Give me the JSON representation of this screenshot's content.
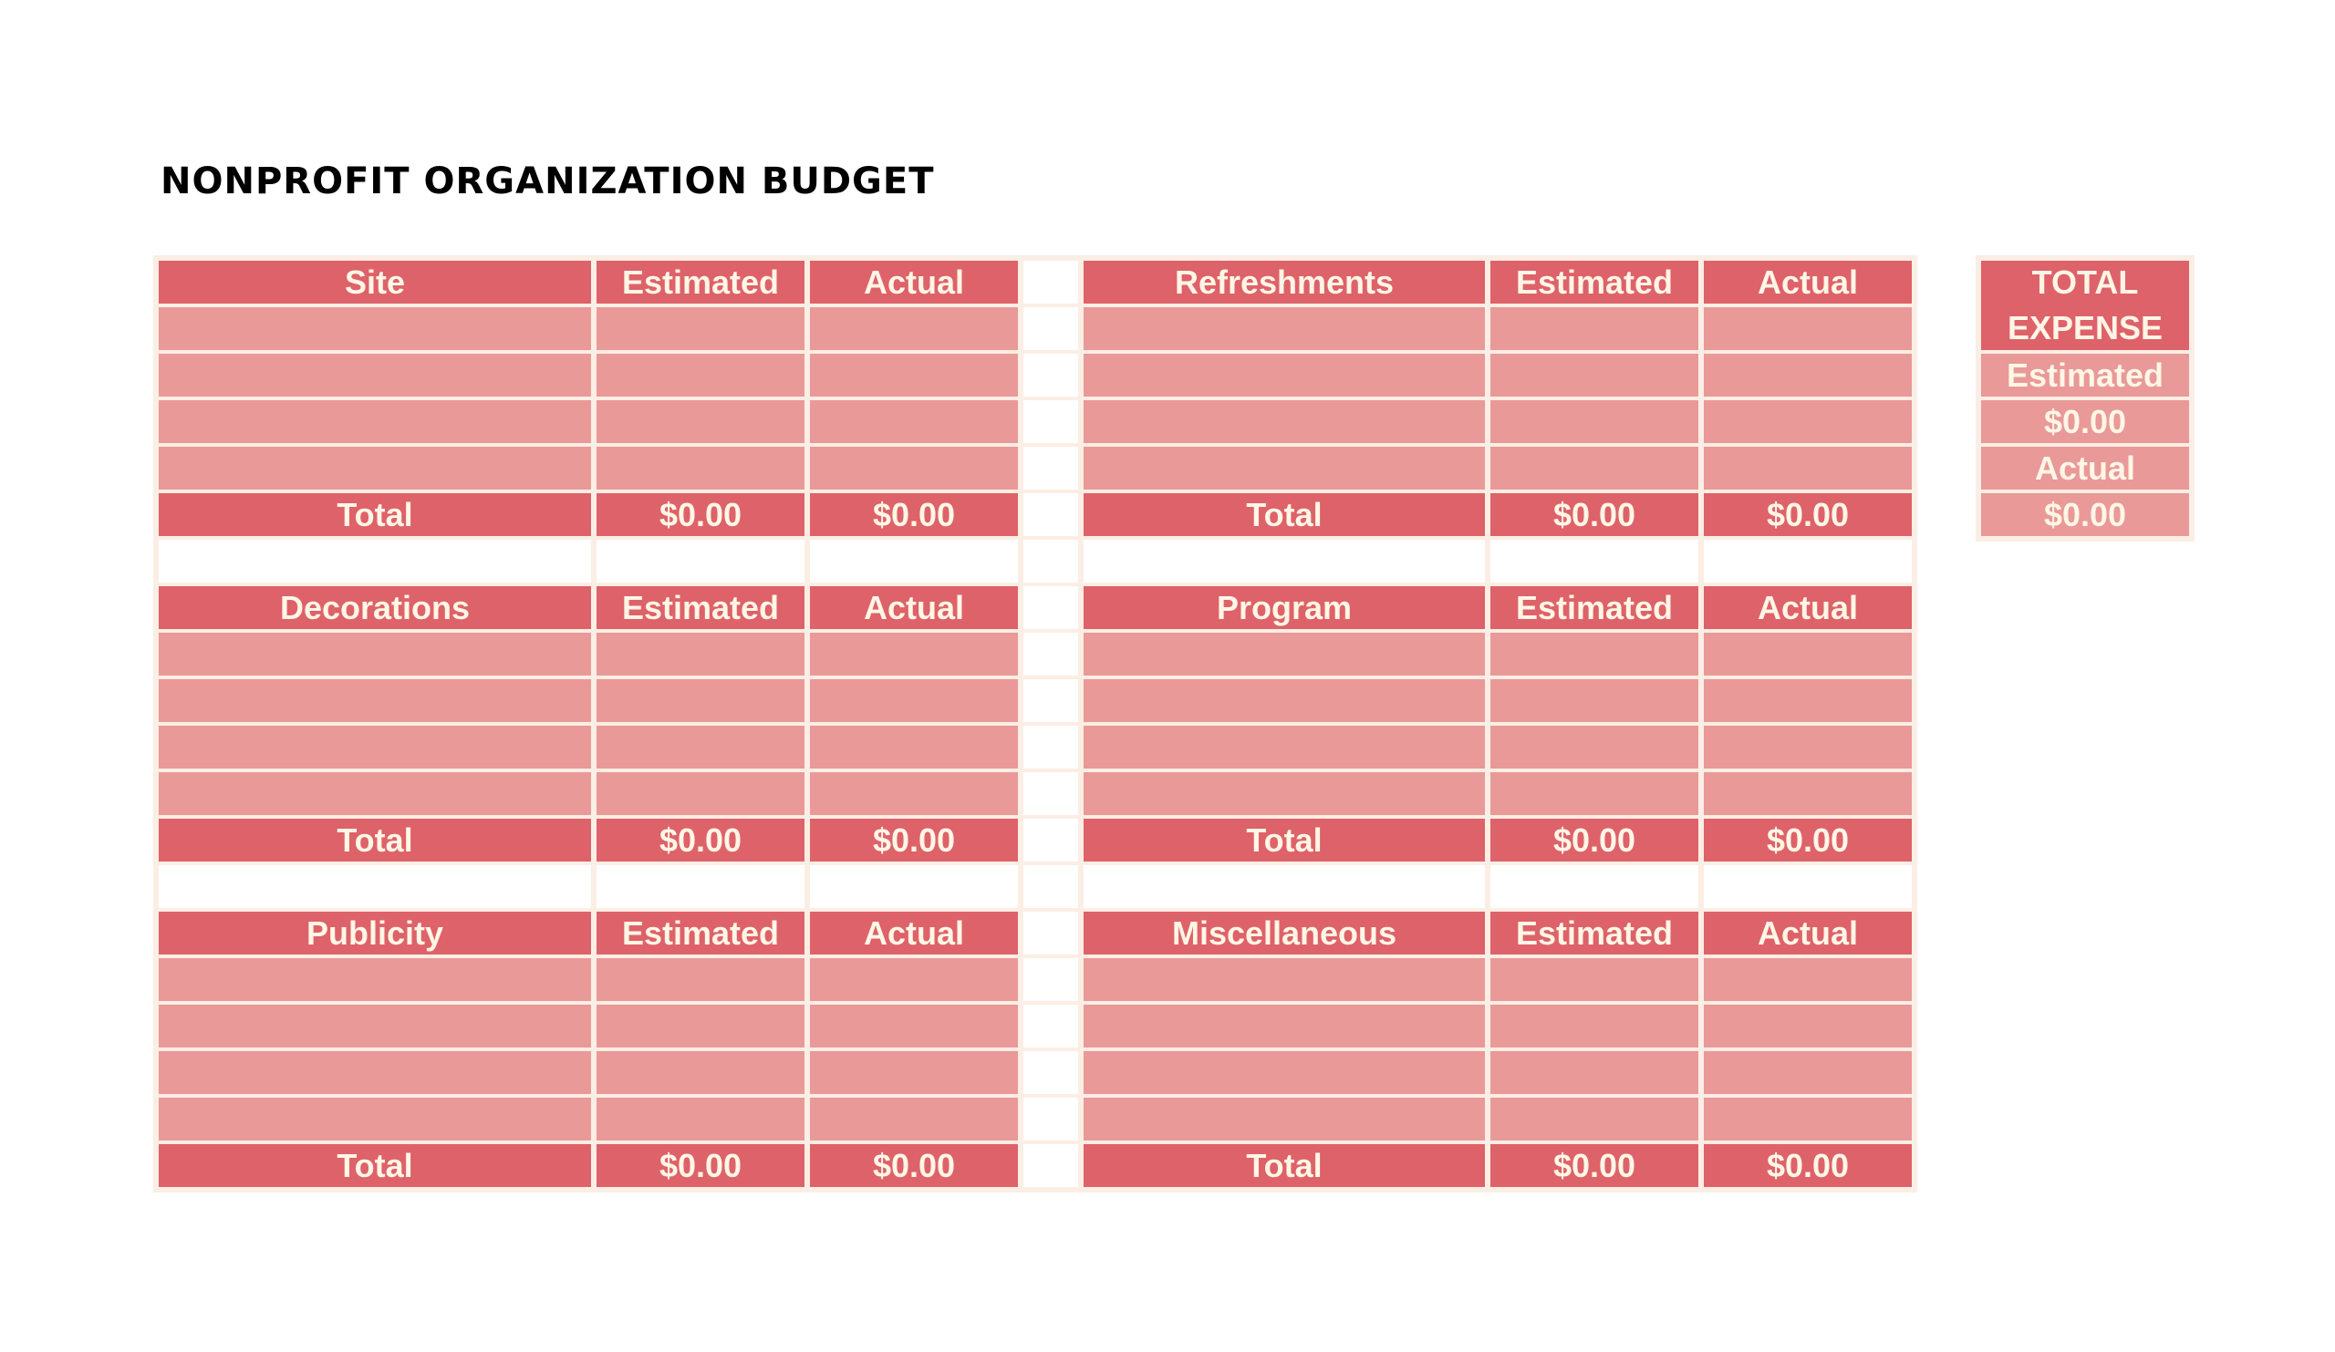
{
  "title": "NONPROFIT ORGANIZATION BUDGET",
  "colors": {
    "header": "#de6269",
    "row": "#e99998",
    "border": "#fbeee4",
    "text": "#fff6e6"
  },
  "row_bands": [
    {
      "left": {
        "name": "Site",
        "est_label": "Estimated",
        "act_label": "Actual",
        "total_label": "Total",
        "total_est": "$0.00",
        "total_act": "$0.00"
      },
      "right": {
        "name": "Refreshments",
        "est_label": "Estimated",
        "act_label": "Actual",
        "total_label": "Total",
        "total_est": "$0.00",
        "total_act": "$0.00"
      }
    },
    {
      "left": {
        "name": "Decorations",
        "est_label": "Estimated",
        "act_label": "Actual",
        "total_label": "Total",
        "total_est": "$0.00",
        "total_act": "$0.00"
      },
      "right": {
        "name": "Program",
        "est_label": "Estimated",
        "act_label": "Actual",
        "total_label": "Total",
        "total_est": "$0.00",
        "total_act": "$0.00"
      }
    },
    {
      "left": {
        "name": "Publicity",
        "est_label": "Estimated",
        "act_label": "Actual",
        "total_label": "Total",
        "total_est": "$0.00",
        "total_act": "$0.00"
      },
      "right": {
        "name": "Miscellaneous",
        "est_label": "Estimated",
        "act_label": "Actual",
        "total_label": "Total",
        "total_est": "$0.00",
        "total_act": "$0.00"
      }
    }
  ],
  "summary": {
    "title_line1": "TOTAL",
    "title_line2": "EXPENSE",
    "estimated_label": "Estimated",
    "estimated_value": "$0.00",
    "actual_label": "Actual",
    "actual_value": "$0.00"
  }
}
